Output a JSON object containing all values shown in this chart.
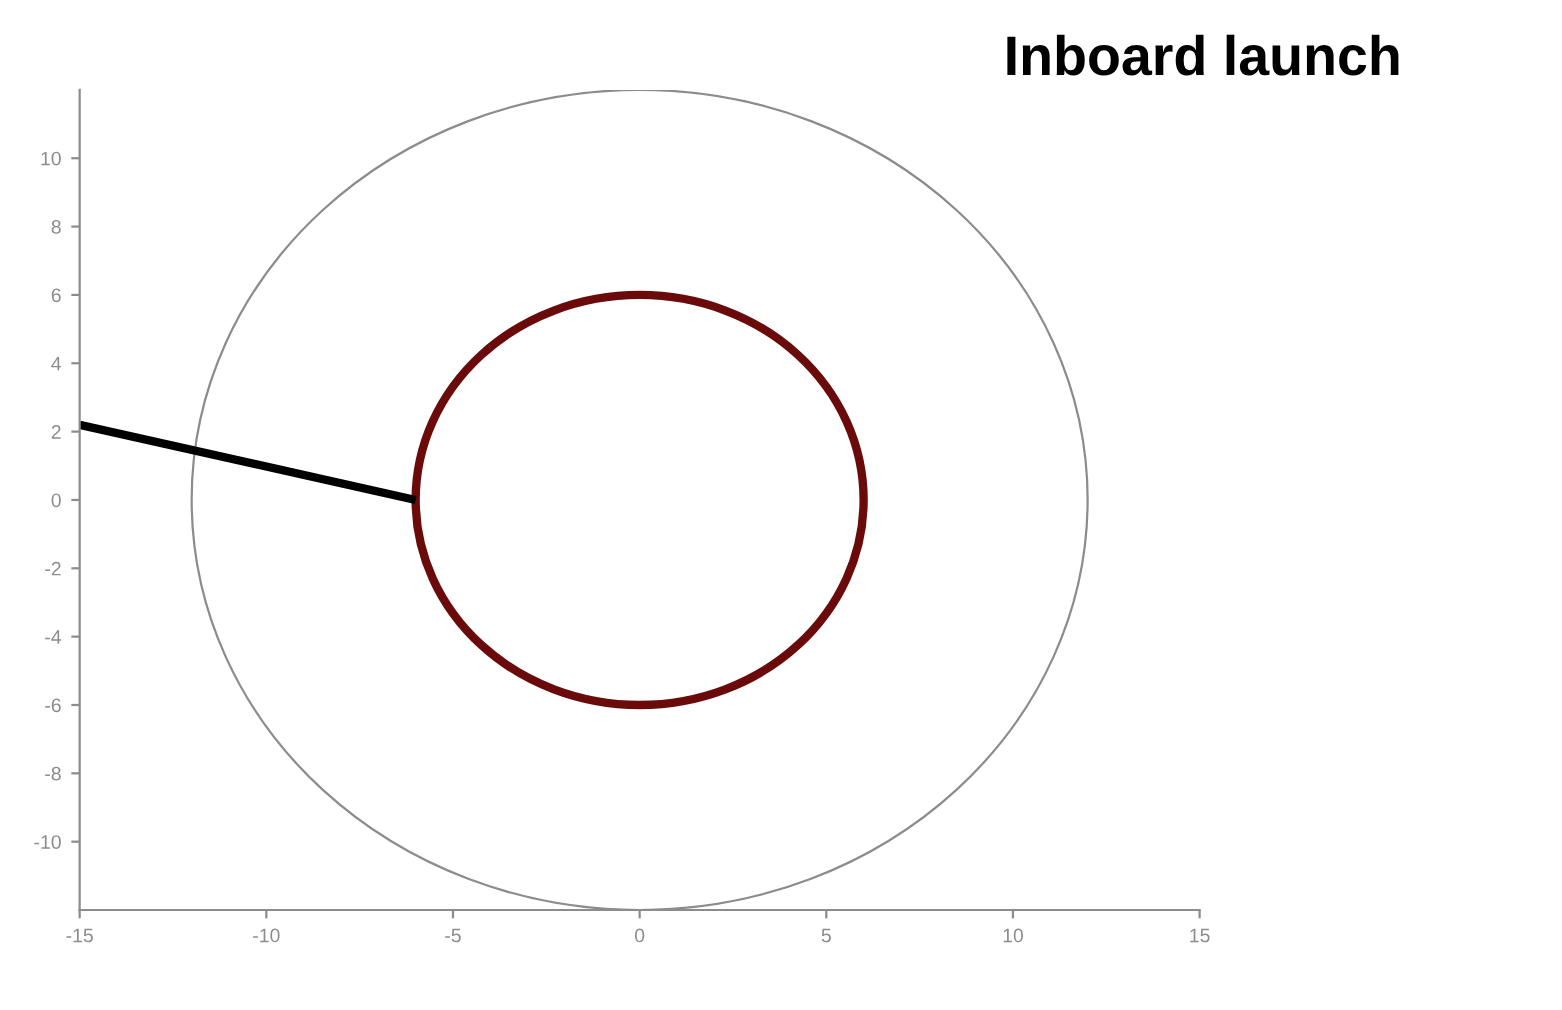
{
  "chart_data": {
    "type": "line",
    "title": "Inboard launch",
    "xlim": [
      -15,
      15
    ],
    "ylim": [
      -12,
      12
    ],
    "xticks": [
      -15,
      -10,
      -5,
      0,
      5,
      10,
      15
    ],
    "yticks": [
      -10,
      -8,
      -6,
      -4,
      -2,
      0,
      2,
      4,
      6,
      8,
      10
    ],
    "grid": false,
    "marker": "none",
    "series": [
      {
        "color": "#000000",
        "x": [
          -15,
          -6
        ],
        "values": [
          2.2,
          0
        ]
      }
    ]
  }
}
